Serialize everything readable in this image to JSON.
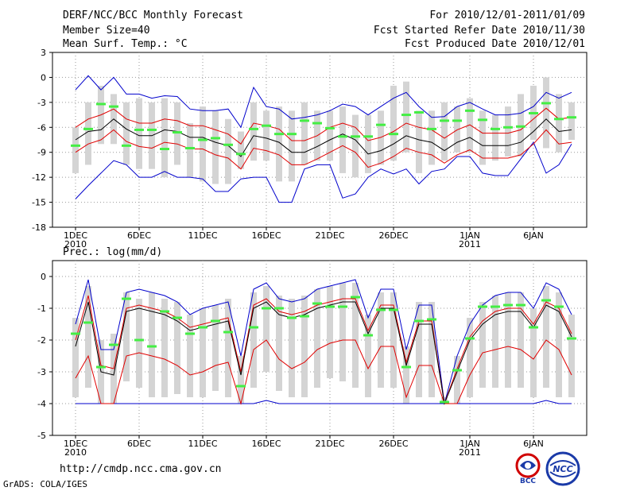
{
  "header": {
    "title": "DERF/NCC/BCC Monthly Forecast",
    "member": "Member Size=40",
    "variable": "Mean Surf. Temp.: °C",
    "period": "For 2010/12/01-2011/01/09",
    "refer": "Fcst Started Refer Date 2010/11/30",
    "produced": "Fcst Produced Date 2010/12/01"
  },
  "footer": {
    "url": "http://cmdp.ncc.cma.gov.cn",
    "grads": "GrADS: COLA/IGES",
    "logo_bcc": "BCC",
    "logo_ncc": "NCC"
  },
  "colors": {
    "bar": "#d4d4d4",
    "ensemble_mean": "#000000",
    "std_band": "#e00000",
    "extreme": "#0000cc",
    "deterministic": "#44ee44",
    "grid": "#999999"
  },
  "chart_data": [
    {
      "type": "line",
      "title": "Mean Surf. Temp.: °C",
      "x": "day index 1-40 (2010-12-01 .. 2011-01-09)",
      "x_ticks": [
        {
          "day": 1,
          "label": "1DEC",
          "year": "2010"
        },
        {
          "day": 6,
          "label": "6DEC"
        },
        {
          "day": 11,
          "label": "11DEC"
        },
        {
          "day": 16,
          "label": "16DEC"
        },
        {
          "day": 21,
          "label": "21DEC"
        },
        {
          "day": 26,
          "label": "26DEC"
        },
        {
          "day": 32,
          "label": "1JAN",
          "year": "2011"
        },
        {
          "day": 37,
          "label": "6JAN"
        }
      ],
      "ylim": [
        -18,
        3
      ],
      "yticks": [
        3,
        0,
        -3,
        -6,
        -9,
        -12,
        -15,
        -18
      ],
      "series": [
        {
          "name": "mean",
          "values": [
            -7.5,
            -6.5,
            -6.3,
            -5,
            -6.2,
            -7,
            -7,
            -6.3,
            -6.5,
            -7.2,
            -7.2,
            -7.8,
            -8.2,
            -9.5,
            -7,
            -7.3,
            -7.8,
            -9,
            -9,
            -8.3,
            -7.5,
            -6.8,
            -7.5,
            -9.2,
            -8.8,
            -8,
            -7,
            -7.5,
            -7.8,
            -8.8,
            -7.8,
            -7.2,
            -8.2,
            -8.2,
            -8.2,
            -7.8,
            -6.5,
            -5,
            -6.5,
            -6.3
          ]
        },
        {
          "name": "mean+sd",
          "values": [
            -6,
            -5,
            -4.5,
            -3.8,
            -5,
            -5.5,
            -5.5,
            -5,
            -5.2,
            -5.8,
            -5.8,
            -6.3,
            -6.8,
            -8,
            -5.5,
            -5.8,
            -6.2,
            -7.6,
            -7.6,
            -7,
            -6,
            -5.5,
            -6,
            -7.6,
            -7.2,
            -6.5,
            -5.5,
            -6,
            -6.3,
            -7.3,
            -6.3,
            -5.7,
            -6.7,
            -6.7,
            -6.7,
            -6.3,
            -5,
            -3.7,
            -5,
            -4.8
          ]
        },
        {
          "name": "mean-sd",
          "values": [
            -9,
            -8,
            -7.5,
            -6.3,
            -7.7,
            -8.3,
            -8.5,
            -7.8,
            -8,
            -8.6,
            -8.6,
            -9.3,
            -9.7,
            -11,
            -8.5,
            -8.8,
            -9.3,
            -10.5,
            -10.5,
            -9.8,
            -9,
            -8.2,
            -9,
            -10.8,
            -10.3,
            -9.5,
            -8.5,
            -9,
            -9.3,
            -10.3,
            -9.3,
            -8.7,
            -9.7,
            -9.7,
            -9.7,
            -9.3,
            -8,
            -6.3,
            -8,
            -7.8
          ]
        },
        {
          "name": "max",
          "values": [
            -1.5,
            0.2,
            -1.5,
            0,
            -2,
            -2,
            -2.5,
            -2.2,
            -2.3,
            -3.8,
            -4,
            -4,
            -3.8,
            -6,
            -1.2,
            -3.5,
            -3.8,
            -5,
            -4.8,
            -4.5,
            -4,
            -3.2,
            -3.5,
            -4.5,
            -3.5,
            -2.5,
            -1.8,
            -3.5,
            -4.8,
            -4.7,
            -3.5,
            -3,
            -3.8,
            -4.5,
            -4.5,
            -4.3,
            -3.5,
            -1.8,
            -2.5,
            -1.8
          ]
        },
        {
          "name": "min",
          "values": [
            -14.6,
            -13,
            -11.5,
            -10,
            -10.5,
            -12,
            -12,
            -11.3,
            -12,
            -12,
            -12.2,
            -13.7,
            -13.7,
            -12.2,
            -12,
            -12,
            -15,
            -15,
            -11,
            -10.5,
            -10.5,
            -14.5,
            -14,
            -12,
            -11,
            -11.6,
            -11,
            -12.8,
            -11.3,
            -11,
            -9.5,
            -9.5,
            -11.5,
            -11.8,
            -11.8,
            -9.8,
            -7.8,
            -11.5,
            -10.5,
            -8
          ]
        },
        {
          "name": "deterministic",
          "values": [
            -8.2,
            -6.2,
            -3.2,
            -3.5,
            -8.2,
            -6.3,
            -6.3,
            -8.6,
            -6.6,
            -8.5,
            -7.5,
            -7.3,
            -8.1,
            -9.2,
            -6.2,
            -5.8,
            -6.8,
            -6.8,
            -5.2,
            -5.5,
            -6.1,
            -7.1,
            -7.1,
            -7.1,
            -5.7,
            -6.8,
            -4.5,
            -4.2,
            -6.2,
            -5.2,
            -5.2,
            -4,
            -5.1,
            -6.2,
            -6,
            -5.9,
            -4.3,
            -3.1,
            -5,
            -4.8
          ]
        },
        {
          "name": "bar_top",
          "values": [
            -6,
            -3,
            -1,
            -2,
            -3,
            -2.5,
            -3,
            -2.5,
            -3,
            -5.5,
            -3.5,
            -4,
            -5,
            -6.5,
            -3,
            -4,
            -3.5,
            -4,
            -3,
            -4,
            -4,
            -3.5,
            -4.5,
            -4.5,
            -4,
            -1,
            -0.5,
            -4,
            -4,
            -3,
            -3.5,
            -2.5,
            -4,
            -4.5,
            -3.5,
            -2,
            -1,
            0,
            -2,
            -3
          ]
        },
        {
          "name": "bar_bottom",
          "values": [
            -11.5,
            -10.5,
            -8,
            -8,
            -10.5,
            -11,
            -11,
            -12,
            -10.5,
            -12,
            -12.5,
            -12.8,
            -12.8,
            -11,
            -10,
            -10,
            -12.5,
            -12.5,
            -10.5,
            -10,
            -10,
            -11.5,
            -12,
            -11.5,
            -10.5,
            -10,
            -9,
            -11.5,
            -10.5,
            -10,
            -9,
            -9,
            -10.5,
            -10,
            -9.5,
            -9.5,
            -7.5,
            -8.5,
            -9,
            -7.5
          ]
        }
      ]
    },
    {
      "type": "line",
      "title": "Prec.: log(mm/d)",
      "x": "day index 1-40 (2010-12-01 .. 2011-01-09)",
      "x_ticks": [
        {
          "day": 1,
          "label": "1DEC",
          "year": "2010"
        },
        {
          "day": 6,
          "label": "6DEC"
        },
        {
          "day": 11,
          "label": "11DEC"
        },
        {
          "day": 16,
          "label": "16DEC"
        },
        {
          "day": 21,
          "label": "21DEC"
        },
        {
          "day": 26,
          "label": "26DEC"
        },
        {
          "day": 32,
          "label": "1JAN",
          "year": "2011"
        },
        {
          "day": 37,
          "label": "6JAN"
        }
      ],
      "ylim": [
        -5,
        0.5
      ],
      "yticks": [
        0,
        -1,
        -2,
        -3,
        -4,
        -5
      ],
      "series": [
        {
          "name": "mean",
          "values": [
            -2.2,
            -0.8,
            -3,
            -3.1,
            -1.1,
            -1,
            -1.1,
            -1.2,
            -1.4,
            -1.7,
            -1.6,
            -1.5,
            -1.4,
            -3.1,
            -1,
            -0.8,
            -1.2,
            -1.3,
            -1.2,
            -1,
            -0.9,
            -0.8,
            -0.8,
            -1.8,
            -1,
            -1,
            -2.8,
            -1.5,
            -1.5,
            -4,
            -3,
            -2,
            -1.5,
            -1.2,
            -1.1,
            -1.1,
            -1.6,
            -0.9,
            -1.1,
            -1.9
          ]
        },
        {
          "name": "upper",
          "values": [
            -2,
            -0.6,
            -2.8,
            -2.9,
            -1,
            -0.9,
            -1,
            -1.1,
            -1.3,
            -1.6,
            -1.5,
            -1.4,
            -1.3,
            -3,
            -0.9,
            -0.7,
            -1.1,
            -1.2,
            -1.1,
            -0.9,
            -0.8,
            -0.7,
            -0.7,
            -1.7,
            -0.9,
            -0.9,
            -2.7,
            -1.4,
            -1.4,
            -4,
            -2.9,
            -1.9,
            -1.4,
            -1.1,
            -1,
            -1,
            -1.5,
            -0.8,
            -1,
            -1.8
          ]
        },
        {
          "name": "lower",
          "values": [
            -3.2,
            -2.5,
            -4,
            -4,
            -2.5,
            -2.4,
            -2.5,
            -2.6,
            -2.8,
            -3.1,
            -3,
            -2.8,
            -2.7,
            -4,
            -2.3,
            -2,
            -2.6,
            -2.9,
            -2.7,
            -2.3,
            -2.1,
            -2,
            -2,
            -2.9,
            -2.2,
            -2.2,
            -3.8,
            -2.8,
            -2.8,
            -4,
            -4,
            -3.1,
            -2.4,
            -2.3,
            -2.2,
            -2.3,
            -2.6,
            -2,
            -2.3,
            -3.1
          ]
        },
        {
          "name": "max",
          "values": [
            -1.5,
            -0.1,
            -2.3,
            -2.3,
            -0.5,
            -0.4,
            -0.5,
            -0.6,
            -0.8,
            -1.2,
            -1,
            -0.9,
            -0.8,
            -2.5,
            -0.4,
            -0.2,
            -0.7,
            -0.8,
            -0.7,
            -0.4,
            -0.3,
            -0.2,
            -0.1,
            -1.3,
            -0.4,
            -0.4,
            -2.3,
            -0.9,
            -0.9,
            -4,
            -2.5,
            -1.5,
            -0.9,
            -0.6,
            -0.5,
            -0.5,
            -1,
            -0.2,
            -0.4,
            -1.2
          ]
        },
        {
          "name": "min",
          "values": [
            -4,
            -4,
            -4,
            -4,
            -4,
            -4,
            -4,
            -4,
            -4,
            -4,
            -4,
            -4,
            -4,
            -4,
            -4,
            -3.9,
            -4,
            -4,
            -4,
            -4,
            -4,
            -4,
            -4,
            -4,
            -4,
            -4,
            -4,
            -4,
            -4,
            -4,
            -4,
            -4,
            -4,
            -4,
            -4,
            -4,
            -4,
            -3.9,
            -4,
            -4
          ]
        },
        {
          "name": "deterministic",
          "values": [
            -1.8,
            -1.45,
            -2.85,
            -2.15,
            -0.7,
            -2,
            -2.2,
            -1.1,
            -1.3,
            -1.8,
            -1.6,
            -1.4,
            -1.75,
            -3.45,
            -1.6,
            -1,
            -1,
            -1.3,
            -1.25,
            -0.85,
            -0.95,
            -0.95,
            -0.65,
            -1.85,
            -1.05,
            -1.05,
            -2.85,
            -1.4,
            -1.35,
            -3.95,
            -2.95,
            -1.95,
            -0.95,
            -0.95,
            -0.9,
            -0.9,
            -1.6,
            -0.75,
            -0.95,
            -1.95
          ]
        },
        {
          "name": "bar_top",
          "values": [
            -1.3,
            -0.3,
            -2,
            -1.8,
            -0.5,
            -0.7,
            -0.5,
            -0.7,
            -0.8,
            -1.2,
            -1,
            -0.9,
            -0.7,
            -2.5,
            -0.5,
            -0.3,
            -0.6,
            -0.7,
            -0.6,
            -0.4,
            -0.3,
            -0.2,
            -0.2,
            -1.2,
            -0.5,
            -0.5,
            -2.2,
            -0.8,
            -0.8,
            -3.8,
            -2.5,
            -1.3,
            -0.8,
            -0.6,
            -0.5,
            -0.5,
            -1,
            -0.3,
            -0.5,
            -1.2
          ]
        },
        {
          "name": "bar_bottom",
          "values": [
            -3.8,
            -3.5,
            -4,
            -4,
            -3.3,
            -3.5,
            -3.8,
            -3.8,
            -3.7,
            -3.8,
            -3.8,
            -3.6,
            -3.8,
            -4,
            -3.5,
            -3,
            -3.6,
            -3.8,
            -3.8,
            -3.5,
            -3.2,
            -3.3,
            -3.5,
            -3.8,
            -3.5,
            -3.5,
            -4,
            -3.8,
            -3.8,
            -4,
            -4,
            -3.8,
            -3.5,
            -3.5,
            -3.5,
            -3.5,
            -3.8,
            -3.5,
            -3.8,
            -3.8
          ]
        }
      ]
    }
  ]
}
